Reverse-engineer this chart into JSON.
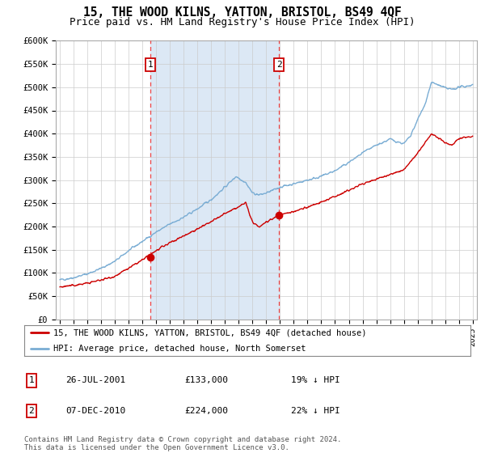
{
  "title": "15, THE WOOD KILNS, YATTON, BRISTOL, BS49 4QF",
  "subtitle": "Price paid vs. HM Land Registry's House Price Index (HPI)",
  "title_fontsize": 10.5,
  "subtitle_fontsize": 9,
  "background_color": "#ffffff",
  "plot_bg_color": "#ffffff",
  "grid_color": "#cccccc",
  "hpi_color": "#7aadd4",
  "price_color": "#cc0000",
  "marker_color": "#cc0000",
  "vline_color": "#ee4444",
  "shade_color": "#dce8f5",
  "legend_label_price": "15, THE WOOD KILNS, YATTON, BRISTOL, BS49 4QF (detached house)",
  "legend_label_hpi": "HPI: Average price, detached house, North Somerset",
  "annotation1_date": "26-JUL-2001",
  "annotation1_price": "£133,000",
  "annotation1_hpi": "19% ↓ HPI",
  "annotation2_date": "07-DEC-2010",
  "annotation2_price": "£224,000",
  "annotation2_hpi": "22% ↓ HPI",
  "footnote": "Contains HM Land Registry data © Crown copyright and database right 2024.\nThis data is licensed under the Open Government Licence v3.0.",
  "ylim": [
    0,
    600000
  ],
  "yticks": [
    0,
    50000,
    100000,
    150000,
    200000,
    250000,
    300000,
    350000,
    400000,
    450000,
    500000,
    550000,
    600000
  ],
  "x_start_year": 1995,
  "x_end_year": 2025,
  "vline1_year": 2001.57,
  "vline2_year": 2010.93,
  "marker1_year": 2001.57,
  "marker1_value": 133000,
  "marker2_year": 2010.93,
  "marker2_value": 224000
}
